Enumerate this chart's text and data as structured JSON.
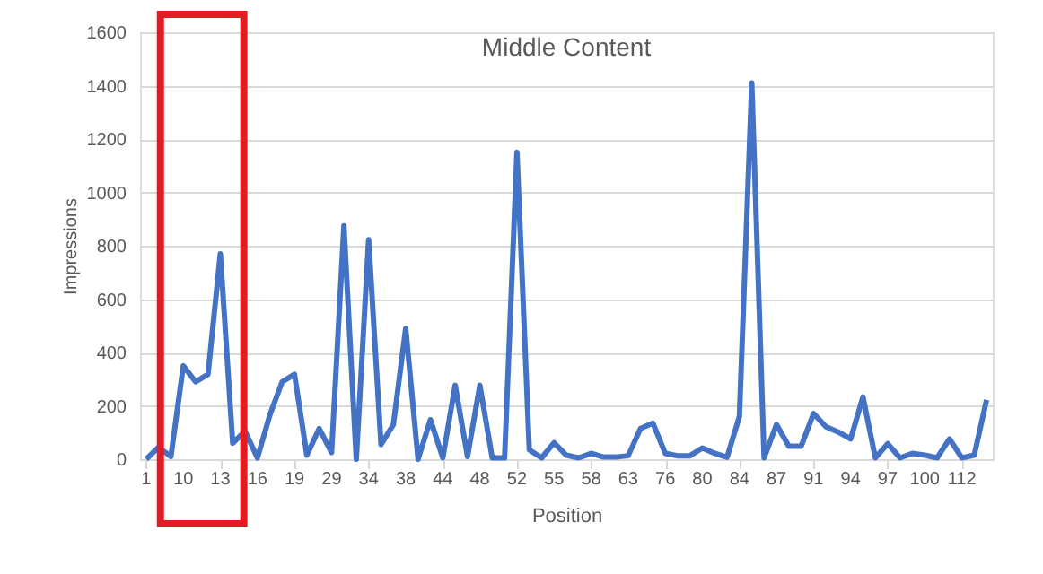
{
  "chart_data": {
    "type": "line",
    "title": "Middle Content",
    "xlabel": "Position",
    "ylabel": "Impressions",
    "categories": [
      "1",
      null,
      null,
      "10",
      null,
      null,
      "13",
      null,
      null,
      "16",
      null,
      null,
      "19",
      null,
      null,
      "29",
      null,
      null,
      "34",
      null,
      null,
      "38",
      null,
      null,
      "44",
      null,
      null,
      "48",
      null,
      null,
      "52",
      null,
      null,
      "55",
      null,
      null,
      "58",
      null,
      null,
      "63",
      null,
      null,
      "76",
      null,
      null,
      "80",
      null,
      null,
      "84",
      null,
      null,
      "87",
      null,
      null,
      "91",
      null,
      null,
      "94",
      null,
      null,
      "97",
      null,
      null,
      "100",
      null,
      null,
      "112",
      null,
      null
    ],
    "series": [
      {
        "color": "#4472c4",
        "values": [
          0,
          45,
          10,
          350,
          290,
          318,
          770,
          60,
          105,
          5,
          165,
          290,
          318,
          15,
          115,
          25,
          875,
          0,
          823,
          55,
          130,
          490,
          0,
          148,
          5,
          277,
          10,
          277,
          5,
          5,
          1150,
          35,
          5,
          62,
          15,
          5,
          22,
          8,
          8,
          13,
          115,
          135,
          22,
          13,
          13,
          42,
          22,
          7,
          160,
          1410,
          5,
          130,
          49,
          49,
          171,
          122,
          102,
          76,
          233,
          5,
          58,
          5,
          22,
          15,
          5,
          76,
          5,
          15,
          222
        ]
      }
    ],
    "ylim": [
      0,
      1600
    ],
    "yticks": [
      0,
      200,
      400,
      600,
      800,
      1000,
      1200,
      1400,
      1600
    ],
    "grid": "y"
  }
}
